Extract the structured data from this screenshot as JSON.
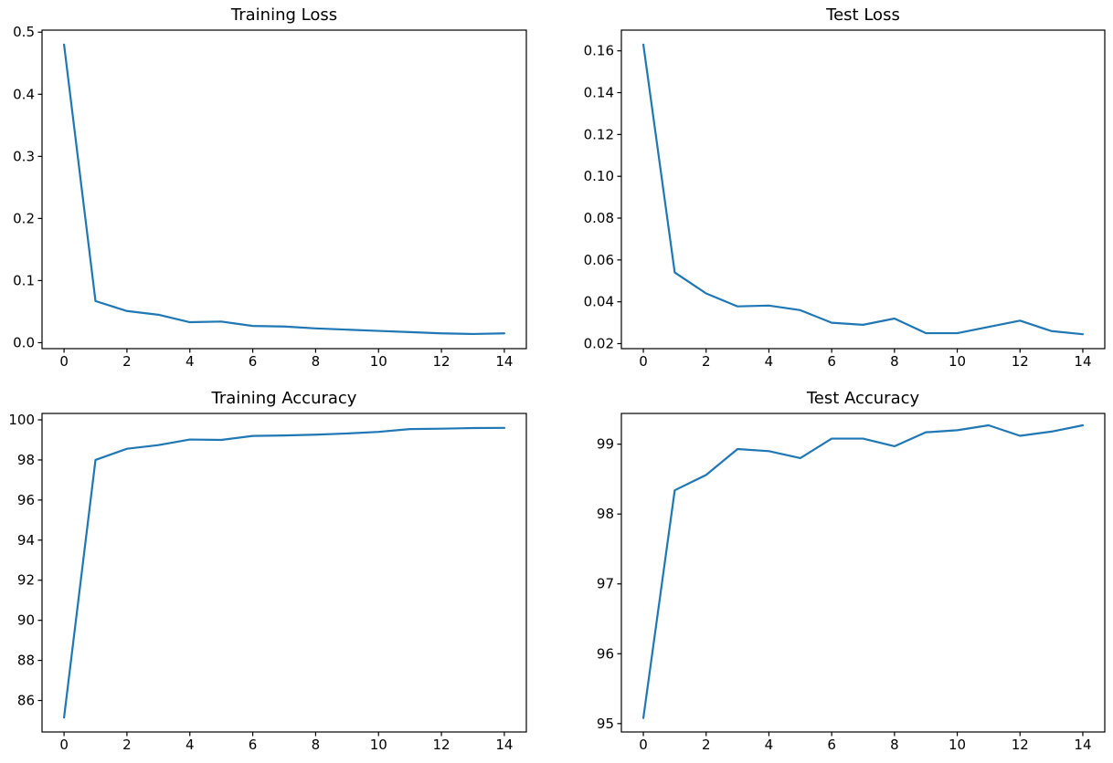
{
  "figure": {
    "background": "#ffffff",
    "spine_color": "#000000",
    "text_color": "#000000",
    "line_color": "#1f77b4"
  },
  "chart_data": [
    {
      "type": "line",
      "title": "Training Loss",
      "xlabel": "",
      "ylabel": "",
      "grid": false,
      "legend": null,
      "line_color": "#1f77b4",
      "x": [
        0,
        1,
        2,
        3,
        4,
        5,
        6,
        7,
        8,
        9,
        10,
        11,
        12,
        13,
        14
      ],
      "y": [
        0.48,
        0.067,
        0.051,
        0.045,
        0.033,
        0.034,
        0.027,
        0.026,
        0.023,
        0.021,
        0.019,
        0.017,
        0.015,
        0.014,
        0.015
      ],
      "xlim": [
        -0.7,
        14.7
      ],
      "ylim": [
        -0.0096,
        0.5033
      ],
      "xticks": [
        0,
        2,
        4,
        6,
        8,
        10,
        12,
        14
      ],
      "xtick_labels": [
        "0",
        "2",
        "4",
        "6",
        "8",
        "10",
        "12",
        "14"
      ],
      "yticks": [
        0.0,
        0.1,
        0.2,
        0.3,
        0.4,
        0.5
      ],
      "ytick_labels": [
        "0.0",
        "0.1",
        "0.2",
        "0.3",
        "0.4",
        "0.5"
      ]
    },
    {
      "type": "line",
      "title": "Test Loss",
      "xlabel": "",
      "ylabel": "",
      "grid": false,
      "legend": null,
      "line_color": "#1f77b4",
      "x": [
        0,
        1,
        2,
        3,
        4,
        5,
        6,
        7,
        8,
        9,
        10,
        11,
        12,
        13,
        14
      ],
      "y": [
        0.163,
        0.054,
        0.044,
        0.0378,
        0.0382,
        0.036,
        0.03,
        0.029,
        0.032,
        0.025,
        0.025,
        0.028,
        0.031,
        0.026,
        0.0245
      ],
      "xlim": [
        -0.7,
        14.7
      ],
      "ylim": [
        0.0176,
        0.1699
      ],
      "xticks": [
        0,
        2,
        4,
        6,
        8,
        10,
        12,
        14
      ],
      "xtick_labels": [
        "0",
        "2",
        "4",
        "6",
        "8",
        "10",
        "12",
        "14"
      ],
      "yticks": [
        0.02,
        0.04,
        0.06,
        0.08,
        0.1,
        0.12,
        0.14,
        0.16
      ],
      "ytick_labels": [
        "0.02",
        "0.04",
        "0.06",
        "0.08",
        "0.10",
        "0.12",
        "0.14",
        "0.16"
      ]
    },
    {
      "type": "line",
      "title": "Training Accuracy",
      "xlabel": "",
      "ylabel": "",
      "grid": false,
      "legend": null,
      "line_color": "#1f77b4",
      "x": [
        0,
        1,
        2,
        3,
        4,
        5,
        6,
        7,
        8,
        9,
        10,
        11,
        12,
        13,
        14
      ],
      "y": [
        85.15,
        98.0,
        98.56,
        98.74,
        99.02,
        99.0,
        99.2,
        99.22,
        99.26,
        99.32,
        99.4,
        99.54,
        99.56,
        99.59,
        99.6
      ],
      "xlim": [
        -0.7,
        14.7
      ],
      "ylim": [
        84.43,
        100.32
      ],
      "xticks": [
        0,
        2,
        4,
        6,
        8,
        10,
        12,
        14
      ],
      "xtick_labels": [
        "0",
        "2",
        "4",
        "6",
        "8",
        "10",
        "12",
        "14"
      ],
      "yticks": [
        86,
        88,
        90,
        92,
        94,
        96,
        98,
        100
      ],
      "ytick_labels": [
        "86",
        "88",
        "90",
        "92",
        "94",
        "96",
        "98",
        "100"
      ]
    },
    {
      "type": "line",
      "title": "Test Accuracy",
      "xlabel": "",
      "ylabel": "",
      "grid": false,
      "legend": null,
      "line_color": "#1f77b4",
      "x": [
        0,
        1,
        2,
        3,
        4,
        5,
        6,
        7,
        8,
        9,
        10,
        11,
        12,
        13,
        14
      ],
      "y": [
        95.08,
        98.34,
        98.56,
        98.93,
        98.9,
        98.8,
        99.08,
        99.08,
        98.97,
        99.17,
        99.2,
        99.27,
        99.12,
        99.18,
        99.27
      ],
      "xlim": [
        -0.7,
        14.7
      ],
      "ylim": [
        94.88,
        99.44
      ],
      "xticks": [
        0,
        2,
        4,
        6,
        8,
        10,
        12,
        14
      ],
      "xtick_labels": [
        "0",
        "2",
        "4",
        "6",
        "8",
        "10",
        "12",
        "14"
      ],
      "yticks": [
        95,
        96,
        97,
        98,
        99
      ],
      "ytick_labels": [
        "95",
        "96",
        "97",
        "98",
        "99"
      ]
    }
  ]
}
